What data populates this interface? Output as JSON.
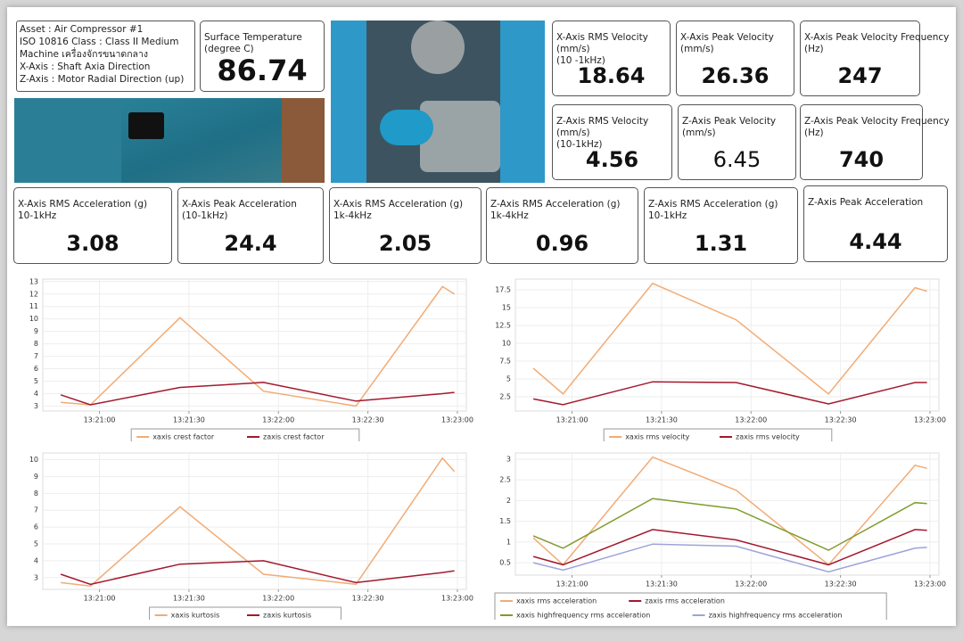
{
  "info": {
    "lines": [
      "Asset : Air Compressor #1",
      "ISO 10816 Class : Class II Medium",
      "Machine เครื่องจักรขนาดกลาง",
      "X-Axis : Shaft Axia Direction",
      "Z-Axis : Motor Radial Direction (up)"
    ]
  },
  "cards": [
    {
      "label": [
        "Surface Temperature",
        "(degree C)"
      ],
      "value": 86.74
    },
    {
      "label": [
        "X-Axis RMS Velocity",
        "(mm/s)",
        "(10 -1kHz)"
      ],
      "value": 18.64
    },
    {
      "label": [
        "X-Axis Peak Velocity",
        "(mm/s)"
      ],
      "value": 26.36
    },
    {
      "label": [
        "X-Axis Peak Velocity Frequency",
        "(Hz)"
      ],
      "value": 247
    },
    {
      "label": [
        "Z-Axis RMS Velocity",
        "(mm/s)",
        "(10-1kHz)"
      ],
      "value": 4.56
    },
    {
      "label": [
        "Z-Axis Peak Velocity",
        "(mm/s)"
      ],
      "value": 6.45
    },
    {
      "label": [
        "Z-Axis Peak Velocity Frequency",
        "(Hz)"
      ],
      "value": 740
    },
    {
      "label": [
        "X-Axis RMS Acceleration (g)",
        "10-1kHz"
      ],
      "value": 3.08
    },
    {
      "label": [
        "X-Axis Peak Acceleration",
        "(10-1kHz)"
      ],
      "value": 24.4
    },
    {
      "label": [
        "X-Axis RMS Acceleration (g)",
        "1k-4kHz"
      ],
      "value": 2.05
    },
    {
      "label": [
        "Z-Axis RMS Acceleration (g)",
        "1k-4kHz"
      ],
      "value": 0.96
    },
    {
      "label": [
        "Z-Axis RMS Acceleration (g)",
        "10-1kHz"
      ],
      "value": 1.31
    },
    {
      "label": [
        "Z-Axis Peak Acceleration"
      ],
      "value": 4.44
    }
  ],
  "charts": [
    {
      "type": "line",
      "x": [
        "13:20:47",
        "13:20:57",
        "13:21:27",
        "13:21:55",
        "13:22:26",
        "13:22:55",
        "13:22:59"
      ],
      "xlim": [
        "13:20:41",
        "13:23:03"
      ],
      "xticks": [
        "13:21:00",
        "13:21:30",
        "13:22:00",
        "13:22:30",
        "13:23:00"
      ],
      "ylim": [
        2.6,
        13.2
      ],
      "yticks": [
        3,
        4,
        5,
        6,
        7,
        8,
        9,
        10,
        11,
        12,
        13
      ],
      "grid": true,
      "series": [
        {
          "name": "xaxis crest factor",
          "color": "#f2ab74",
          "values": [
            3.3,
            3.1,
            10.1,
            4.2,
            3.0,
            12.6,
            12.0
          ]
        },
        {
          "name": "zaxis crest factor",
          "color": "#a3182e",
          "values": [
            3.9,
            3.1,
            4.5,
            4.9,
            3.4,
            4.0,
            4.1
          ]
        }
      ]
    },
    {
      "type": "line",
      "x": [
        "13:20:47",
        "13:20:57",
        "13:21:27",
        "13:21:55",
        "13:22:26",
        "13:22:55",
        "13:22:59"
      ],
      "xlim": [
        "13:20:41",
        "13:23:03"
      ],
      "xticks": [
        "13:21:00",
        "13:21:30",
        "13:22:00",
        "13:22:30",
        "13:23:00"
      ],
      "ylim": [
        0.5,
        19
      ],
      "yticks": [
        2.5,
        5,
        7.5,
        10,
        12.5,
        15,
        17.5
      ],
      "grid": true,
      "series": [
        {
          "name": "xaxis rms velocity",
          "color": "#f2ab74",
          "values": [
            6.5,
            2.9,
            18.4,
            13.3,
            2.9,
            17.8,
            17.3
          ]
        },
        {
          "name": "zaxis rms velocity",
          "color": "#a3182e",
          "values": [
            2.2,
            1.4,
            4.6,
            4.5,
            1.5,
            4.5,
            4.5
          ]
        }
      ]
    },
    {
      "type": "line",
      "x": [
        "13:20:47",
        "13:20:57",
        "13:21:27",
        "13:21:55",
        "13:22:26",
        "13:22:55",
        "13:22:59"
      ],
      "xlim": [
        "13:20:41",
        "13:23:03"
      ],
      "xticks": [
        "13:21:00",
        "13:21:30",
        "13:22:00",
        "13:22:30",
        "13:23:00"
      ],
      "ylim": [
        2.3,
        10.4
      ],
      "yticks": [
        3,
        4,
        5,
        6,
        7,
        8,
        9,
        10
      ],
      "grid": true,
      "series": [
        {
          "name": "xaxis kurtosis",
          "color": "#f2ab74",
          "values": [
            2.7,
            2.5,
            7.2,
            3.2,
            2.6,
            10.1,
            9.3
          ]
        },
        {
          "name": "zaxis kurtosis",
          "color": "#a3182e",
          "values": [
            3.2,
            2.6,
            3.8,
            4.0,
            2.7,
            3.3,
            3.4
          ]
        }
      ]
    },
    {
      "type": "line",
      "x": [
        "13:20:47",
        "13:20:57",
        "13:21:27",
        "13:21:55",
        "13:22:26",
        "13:22:55",
        "13:22:59"
      ],
      "xlim": [
        "13:20:41",
        "13:23:03"
      ],
      "xticks": [
        "13:21:00",
        "13:21:30",
        "13:22:00",
        "13:22:30",
        "13:23:00"
      ],
      "ylim": [
        0.2,
        3.15
      ],
      "yticks": [
        0.5,
        1,
        1.5,
        2,
        2.5,
        3
      ],
      "grid": true,
      "series": [
        {
          "name": "xaxis rms acceleration",
          "color": "#f2ab74",
          "values": [
            1.1,
            0.45,
            3.05,
            2.25,
            0.45,
            2.85,
            2.78
          ]
        },
        {
          "name": "zaxis rms acceleration",
          "color": "#a3182e",
          "values": [
            0.65,
            0.45,
            1.3,
            1.05,
            0.45,
            1.3,
            1.28
          ]
        },
        {
          "name": "xaxis highfrequency rms acceleration",
          "color": "#7f9c2c",
          "values": [
            1.15,
            0.85,
            2.05,
            1.8,
            0.8,
            1.95,
            1.93
          ]
        },
        {
          "name": "zaxis highfrequency rms acceleration",
          "color": "#9ea3d8",
          "values": [
            0.5,
            0.32,
            0.95,
            0.9,
            0.28,
            0.85,
            0.87
          ]
        }
      ]
    }
  ]
}
